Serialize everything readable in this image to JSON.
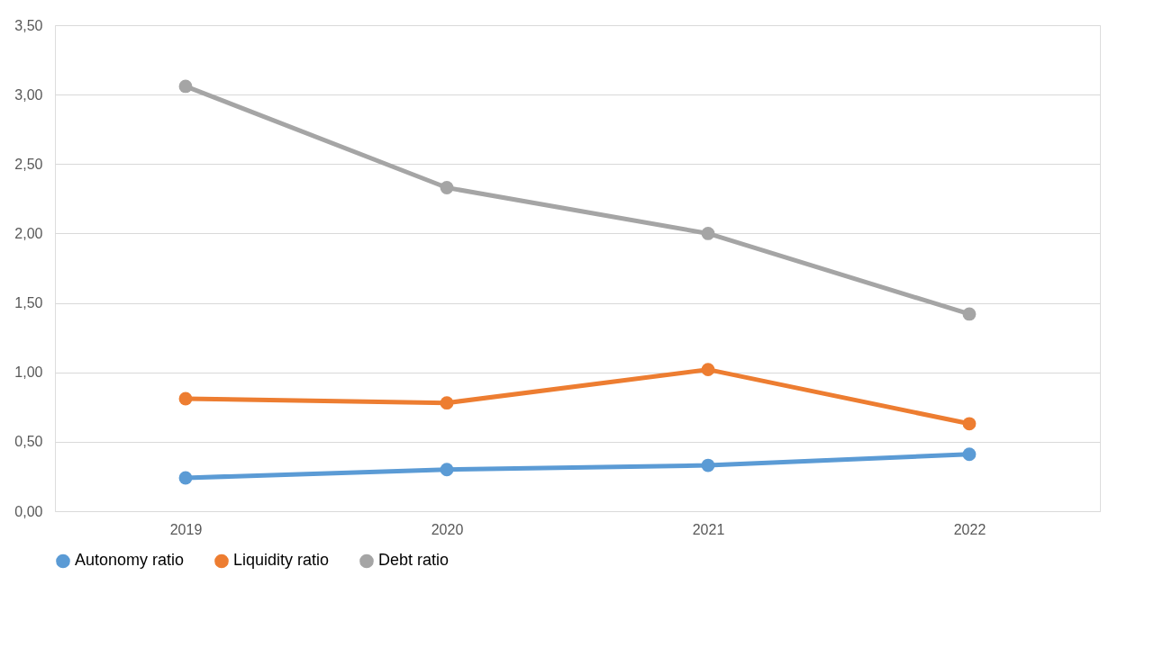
{
  "chart_data": {
    "type": "line",
    "categories": [
      "2019",
      "2020",
      "2021",
      "2022"
    ],
    "series": [
      {
        "name": "Autonomy ratio",
        "color": "#5b9bd5",
        "values": [
          0.24,
          0.3,
          0.33,
          0.41
        ]
      },
      {
        "name": "Liquidity ratio",
        "color": "#ed7d31",
        "values": [
          0.81,
          0.78,
          1.02,
          0.63
        ]
      },
      {
        "name": "Debt ratio",
        "color": "#a5a5a5",
        "values": [
          3.06,
          2.33,
          2.0,
          1.42
        ]
      }
    ],
    "ylim": [
      0,
      3.5
    ],
    "yticks": [
      {
        "value": 0,
        "label": "0,00"
      },
      {
        "value": 0.5,
        "label": "0,50"
      },
      {
        "value": 1,
        "label": "1,00"
      },
      {
        "value": 1.5,
        "label": "1,50"
      },
      {
        "value": 2,
        "label": "2,00"
      },
      {
        "value": 2.5,
        "label": "2,50"
      },
      {
        "value": 3,
        "label": "3,00"
      },
      {
        "value": 3.5,
        "label": "3,50"
      }
    ],
    "grid": "y",
    "legend": "bottom",
    "marker": "circle",
    "line_style": "solid"
  }
}
